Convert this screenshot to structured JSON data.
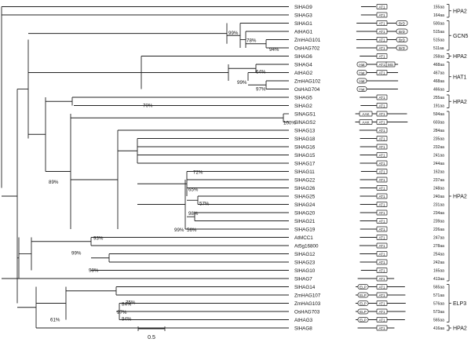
{
  "scale_bar_label": "0.5",
  "taxa": [
    {
      "name": "SlHAG9",
      "length": "155aa",
      "domains": [
        "AT1"
      ]
    },
    {
      "name": "SlHAG3",
      "length": "164aa",
      "domains": [
        "AT1"
      ]
    },
    {
      "name": "SlHAG1",
      "length": "500aa",
      "domains": [
        "AT1",
        "BrD"
      ]
    },
    {
      "name": "AtHAG1",
      "length": "515aa",
      "domains": [
        "AT1",
        "BrD"
      ]
    },
    {
      "name": "ZmHAG101",
      "length": "515aa",
      "domains": [
        "AT1",
        "BrD"
      ]
    },
    {
      "name": "OsHAG702",
      "length": "511aa",
      "domains": [
        "AT1",
        "BrD"
      ]
    },
    {
      "name": "SlHAG6",
      "length": "258aa",
      "domains": [
        "AT1"
      ]
    },
    {
      "name": "SlHAG4",
      "length": "468aa",
      "domains": [
        "Hat",
        "AT1",
        "MS"
      ]
    },
    {
      "name": "AtHAG2",
      "length": "467aa",
      "domains": [
        "Hat",
        "AT1"
      ]
    },
    {
      "name": "ZmHAG102",
      "length": "468aa",
      "domains": [
        "Hat"
      ]
    },
    {
      "name": "OsHAG704",
      "length": "466aa",
      "domains": [
        "Hat"
      ]
    },
    {
      "name": "SlHAG5",
      "length": "255aa",
      "domains": [
        "AT1"
      ]
    },
    {
      "name": "SlHAG2",
      "length": "191aa",
      "domains": [
        "AT1"
      ]
    },
    {
      "name": "SlNAGS1",
      "length": "594aa",
      "domains": [
        "AAK",
        "AT1"
      ]
    },
    {
      "name": "SlNAGS2",
      "length": "603aa",
      "domains": [
        "AAK",
        "AT1"
      ]
    },
    {
      "name": "SlHAG13",
      "length": "284aa",
      "domains": [
        "AT1"
      ]
    },
    {
      "name": "SlHAG18",
      "length": "235aa",
      "domains": [
        "AT1"
      ]
    },
    {
      "name": "SlHAG16",
      "length": "232aa",
      "domains": [
        "AT1"
      ]
    },
    {
      "name": "SlHAG15",
      "length": "241aa",
      "domains": [
        "AT1"
      ]
    },
    {
      "name": "SlHAG17",
      "length": "244aa",
      "domains": [
        "AT1"
      ]
    },
    {
      "name": "SlHAG11",
      "length": "162aa",
      "domains": [
        "AT1"
      ]
    },
    {
      "name": "SlHAG22",
      "length": "237aa",
      "domains": [
        "AT1"
      ]
    },
    {
      "name": "SlHAG26",
      "length": "248aa",
      "domains": [
        "AT1"
      ]
    },
    {
      "name": "SlHAG25",
      "length": "240aa",
      "domains": [
        "AT1"
      ]
    },
    {
      "name": "SlHAG24",
      "length": "231aa",
      "domains": [
        "AT1"
      ]
    },
    {
      "name": "SlHAG20",
      "length": "234aa",
      "domains": [
        "AT1"
      ]
    },
    {
      "name": "SlHAG21",
      "length": "239aa",
      "domains": [
        "AT1"
      ]
    },
    {
      "name": "SlHAG19",
      "length": "226aa",
      "domains": [
        "AT1"
      ]
    },
    {
      "name": "AtMCC1",
      "length": "247aa",
      "domains": [
        "AT1"
      ]
    },
    {
      "name": "At5g16800",
      "length": "278aa",
      "domains": [
        "AT1"
      ]
    },
    {
      "name": "SlHAG12",
      "length": "254aa",
      "domains": [
        "AT1"
      ]
    },
    {
      "name": "SlHAG23",
      "length": "242aa",
      "domains": [
        "AT1"
      ]
    },
    {
      "name": "SlHAG10",
      "length": "165aa",
      "domains": [
        "AT1"
      ]
    },
    {
      "name": "SlHAG7",
      "length": "413aa",
      "domains": [
        "AT1"
      ]
    },
    {
      "name": "SlHAG14",
      "length": "565aa",
      "domains": [
        "ELP",
        "AT1"
      ]
    },
    {
      "name": "ZmHAG107",
      "length": "571aa",
      "domains": [
        "ELP",
        "AT1"
      ]
    },
    {
      "name": "ZmHAG103",
      "length": "576aa",
      "domains": [
        "ELP",
        "AT1"
      ]
    },
    {
      "name": "OsHAG703",
      "length": "573aa",
      "domains": [
        "ELP",
        "AT1"
      ]
    },
    {
      "name": "AtHAG3",
      "length": "565aa",
      "domains": [
        "ELP",
        "AT1"
      ]
    },
    {
      "name": "SlHAG8",
      "length": "416aa",
      "domains": [
        "AT1"
      ]
    }
  ],
  "bootstrap_labels": [
    "99%",
    "78%",
    "94%",
    "64%",
    "99%",
    "97%",
    "70%",
    "100%",
    "89%",
    "72%",
    "65%",
    "57%",
    "98%",
    "99%",
    "56%",
    "93%",
    "99%",
    "98%",
    "84%",
    "75%",
    "94%",
    "97%",
    "61%"
  ],
  "groups": [
    {
      "label": "HPA2"
    },
    {
      "label": "GCN5"
    },
    {
      "label": "HPA2"
    },
    {
      "label": "HAT1"
    },
    {
      "label": "HPA2"
    },
    {
      "label": "HPA2"
    },
    {
      "label": "ELP3"
    },
    {
      "label": "HPA2"
    }
  ]
}
